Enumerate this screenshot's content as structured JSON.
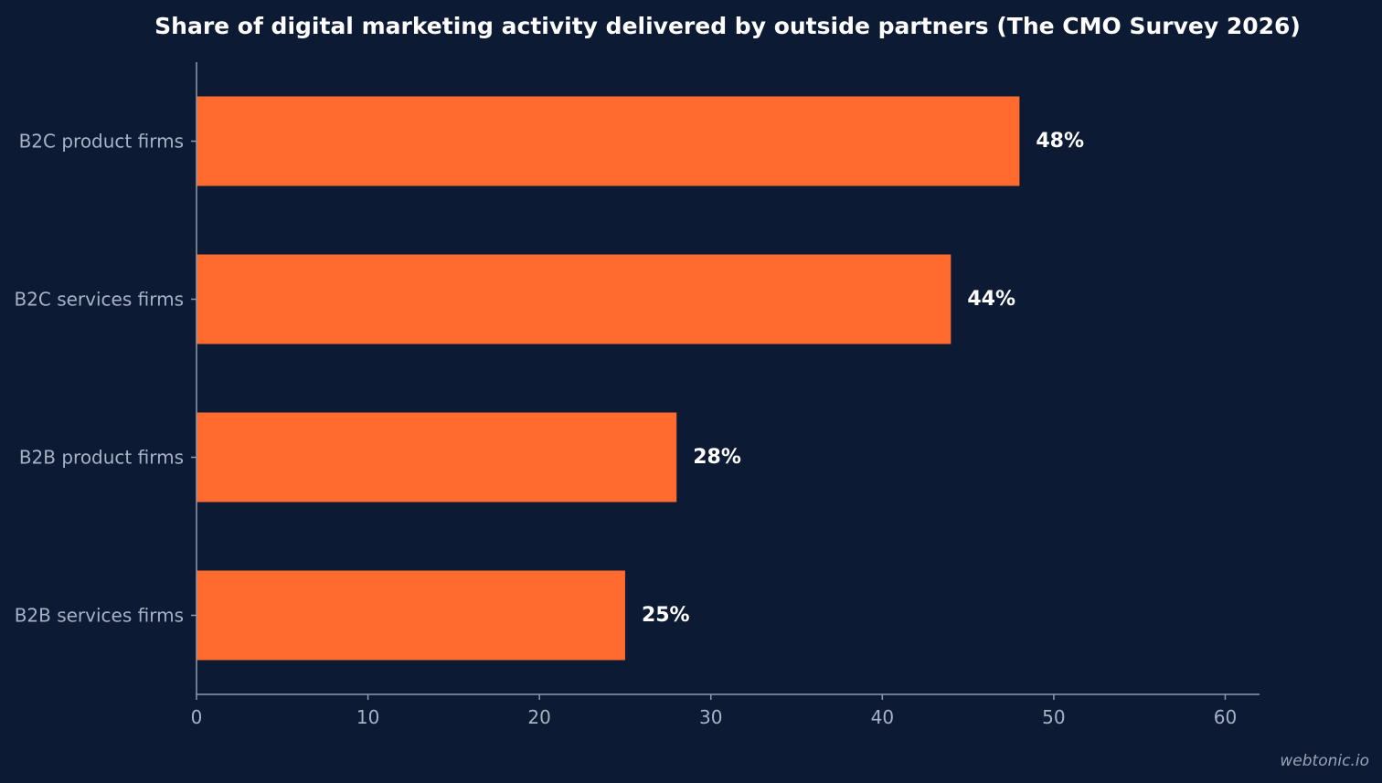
{
  "colors": {
    "background": "#0c1a33",
    "bar": "#ff6b2e",
    "axis": "#8e99ad",
    "label": "#a7b2c4",
    "value": "#ffffff"
  },
  "watermark": "webtonic.io",
  "chart_data": {
    "type": "bar",
    "orientation": "horizontal",
    "title": "Share of digital marketing activity delivered by outside partners (The CMO Survey 2026)",
    "categories": [
      "B2C product firms",
      "B2C services firms",
      "B2B product firms",
      "B2B services firms"
    ],
    "values": [
      48,
      44,
      28,
      25
    ],
    "value_labels": [
      "48%",
      "44%",
      "28%",
      "25%"
    ],
    "xlim": [
      0,
      62
    ],
    "xticks": [
      0,
      10,
      20,
      30,
      40,
      50,
      60
    ],
    "xlabel": "",
    "ylabel": "",
    "grid": false,
    "legend": "none"
  }
}
